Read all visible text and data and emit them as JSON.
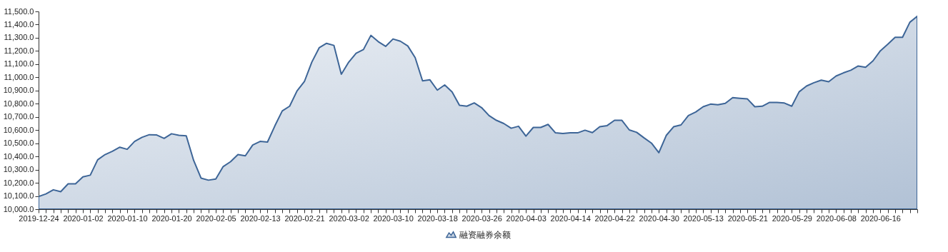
{
  "chart_data": {
    "type": "area",
    "categories": [
      "2019-12-24",
      null,
      null,
      null,
      null,
      null,
      "2020-01-02",
      null,
      null,
      null,
      null,
      null,
      "2020-01-10",
      null,
      null,
      null,
      null,
      null,
      "2020-01-20",
      null,
      null,
      null,
      null,
      null,
      "2020-02-05",
      null,
      null,
      null,
      null,
      null,
      "2020-02-13",
      null,
      null,
      null,
      null,
      null,
      "2020-02-21",
      null,
      null,
      null,
      null,
      null,
      "2020-03-02",
      null,
      null,
      null,
      null,
      null,
      "2020-03-10",
      null,
      null,
      null,
      null,
      null,
      "2020-03-18",
      null,
      null,
      null,
      null,
      null,
      "2020-03-26",
      null,
      null,
      null,
      null,
      null,
      "2020-04-03",
      null,
      null,
      null,
      null,
      null,
      "2020-04-14",
      null,
      null,
      null,
      null,
      null,
      "2020-04-22",
      null,
      null,
      null,
      null,
      null,
      "2020-04-30",
      null,
      null,
      null,
      null,
      null,
      "2020-05-13",
      null,
      null,
      null,
      null,
      null,
      "2020-05-21",
      null,
      null,
      null,
      null,
      null,
      "2020-05-29",
      null,
      null,
      null,
      null,
      null,
      "2020-06-08",
      null,
      null,
      null,
      null,
      null,
      "2020-06-16",
      null,
      null,
      null,
      null,
      null
    ],
    "series": [
      {
        "name": "融资融券余额",
        "color": "#3d6597",
        "values": [
          10096,
          10116,
          10147,
          10133,
          10192,
          10192,
          10245,
          10258,
          10374,
          10414,
          10439,
          10470,
          10454,
          10514,
          10545,
          10565,
          10563,
          10537,
          10572,
          10561,
          10556,
          10370,
          10236,
          10220,
          10229,
          10323,
          10360,
          10414,
          10405,
          10487,
          10514,
          10509,
          10632,
          10745,
          10781,
          10897,
          10968,
          11115,
          11224,
          11258,
          11242,
          11024,
          11115,
          11182,
          11211,
          11318,
          11271,
          11235,
          11291,
          11274,
          11238,
          11149,
          10973,
          10981,
          10903,
          10942,
          10890,
          10788,
          10781,
          10806,
          10770,
          10710,
          10674,
          10650,
          10614,
          10629,
          10554,
          10620,
          10620,
          10643,
          10579,
          10574,
          10579,
          10579,
          10599,
          10581,
          10625,
          10634,
          10674,
          10674,
          10601,
          10583,
          10541,
          10501,
          10428,
          10559,
          10625,
          10639,
          10710,
          10737,
          10777,
          10797,
          10792,
          10803,
          10846,
          10841,
          10836,
          10777,
          10781,
          10810,
          10810,
          10805,
          10781,
          10890,
          10934,
          10959,
          10979,
          10967,
          11010,
          11034,
          11054,
          11086,
          11076,
          11125,
          11201,
          11251,
          11304,
          11304,
          11418,
          11464
        ]
      }
    ],
    "ylim": [
      10000,
      11500
    ],
    "yticks": [
      {
        "value": 10000,
        "label": "10,000.0"
      },
      {
        "value": 10100,
        "label": "10,100.0"
      },
      {
        "value": 10200,
        "label": "10,200.0"
      },
      {
        "value": 10300,
        "label": "10,300.0"
      },
      {
        "value": 10400,
        "label": "10,400.0"
      },
      {
        "value": 10500,
        "label": "10,500.0"
      },
      {
        "value": 10600,
        "label": "10,600.0"
      },
      {
        "value": 10700,
        "label": "10,700.0"
      },
      {
        "value": 10800,
        "label": "10,800.0"
      },
      {
        "value": 10900,
        "label": "10,900.0"
      },
      {
        "value": 11000,
        "label": "11,000.0"
      },
      {
        "value": 11100,
        "label": "11,100.0"
      },
      {
        "value": 11200,
        "label": "11,200.0"
      },
      {
        "value": 11300,
        "label": "11,300.0"
      },
      {
        "value": 11400,
        "label": "11,400.0"
      },
      {
        "value": 11500,
        "label": "11,500.0"
      }
    ],
    "grid": false,
    "legend": "bottom"
  }
}
